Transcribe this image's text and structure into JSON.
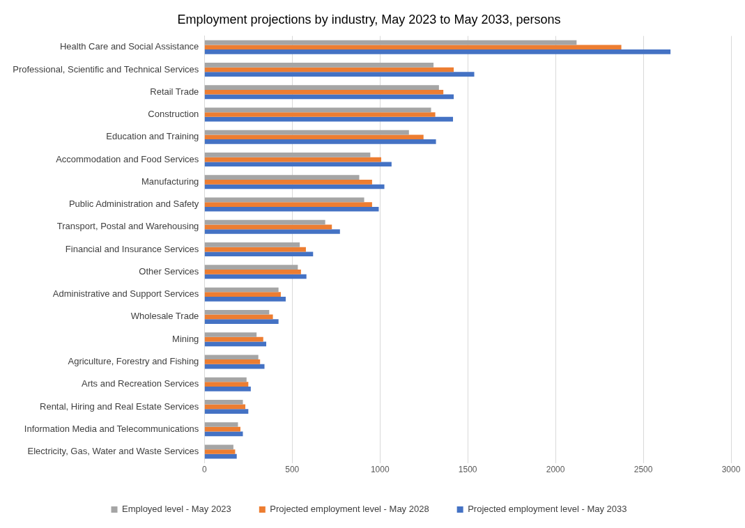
{
  "chart_data": {
    "type": "bar",
    "orientation": "horizontal",
    "title": "Employment projections by industry, May 2023 to May 2033, persons",
    "categories": [
      "Health Care and Social Assistance",
      "Professional, Scientific and Technical Services",
      "Retail Trade",
      "Construction",
      "Education and Training",
      "Accommodation and Food Services",
      "Manufacturing",
      "Public Administration and Safety",
      "Transport, Postal and Warehousing",
      "Financial and Insurance Services",
      "Other Services",
      "Administrative and Support Services",
      "Wholesale Trade",
      "Mining",
      "Agriculture, Forestry and Fishing",
      "Arts and Recreation Services",
      "Rental, Hiring and Real Estate Services",
      "Information Media and Telecommunications",
      "Electricity, Gas, Water and Waste Services"
    ],
    "series": [
      {
        "name": "Employed level - May 2023",
        "color": "#a5a5a5",
        "values": [
          2120,
          1305,
          1336,
          1291,
          1165,
          945,
          882,
          910,
          688,
          543,
          532,
          422,
          369,
          297,
          307,
          240,
          219,
          191,
          165
        ]
      },
      {
        "name": "Projected employment level - May 2028",
        "color": "#ed7d31",
        "values": [
          2375,
          1420,
          1361,
          1315,
          1248,
          1007,
          955,
          955,
          726,
          578,
          550,
          435,
          390,
          335,
          317,
          250,
          233,
          205,
          175
        ]
      },
      {
        "name": "Projected employment level - May 2033",
        "color": "#4472c4",
        "values": [
          2655,
          1537,
          1420,
          1416,
          1319,
          1066,
          1025,
          993,
          772,
          619,
          581,
          463,
          422,
          352,
          342,
          264,
          250,
          219,
          184
        ]
      }
    ],
    "xlim": [
      0,
      3000
    ],
    "xticks": [
      0,
      500,
      1000,
      1500,
      2000,
      2500,
      3000
    ],
    "grid": "x",
    "legend": "bottom"
  }
}
